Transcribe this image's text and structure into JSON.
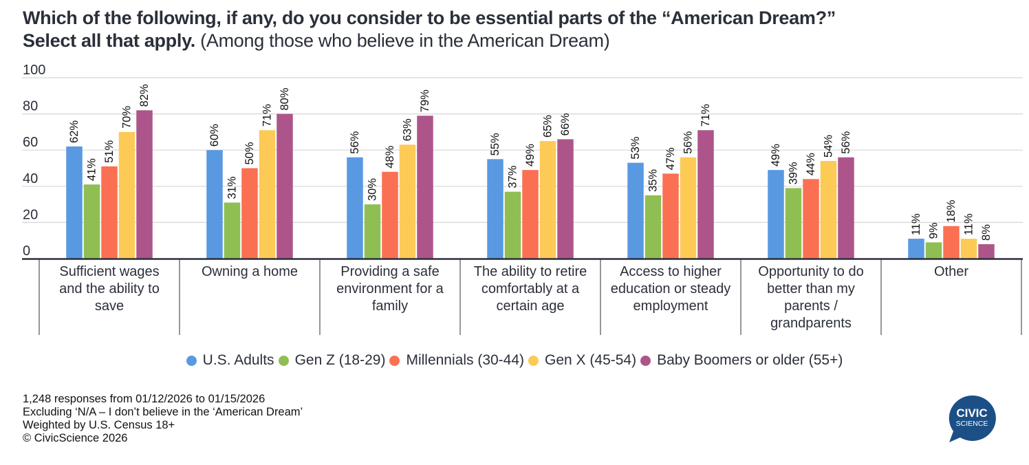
{
  "title": {
    "main": "Which of the following, if any, do you consider to be essential parts of the “American Dream?”",
    "line2_bold": "Select all that apply.",
    "line2_regular": " (Among those who believe in the American Dream)"
  },
  "chart_data": {
    "type": "bar",
    "title": "Which of the following, if any, do you consider to be essential parts of the “American Dream?” Select all that apply. (Among those who believe in the American Dream)",
    "xlabel": "",
    "ylabel": "",
    "ylim": [
      0,
      100
    ],
    "yticks": [
      0,
      20,
      40,
      60,
      80,
      100
    ],
    "grid": true,
    "legend_position": "bottom",
    "value_suffix": "%",
    "categories": [
      [
        "Sufficient wages",
        "and the ability to",
        "save"
      ],
      [
        "Owning a home"
      ],
      [
        "Providing a safe",
        "environment for a",
        "family"
      ],
      [
        "The ability to retire",
        "comfortably at a",
        "certain age"
      ],
      [
        "Access to higher",
        "education or steady",
        "employment"
      ],
      [
        "Opportunity to do",
        "better than my",
        "parents /",
        "grandparents"
      ],
      [
        "Other"
      ]
    ],
    "series": [
      {
        "name": "U.S. Adults",
        "color": "#5899e2",
        "values": [
          62,
          60,
          56,
          55,
          53,
          49,
          11
        ]
      },
      {
        "name": "Gen Z (18-29)",
        "color": "#8fbf52",
        "values": [
          41,
          31,
          30,
          37,
          35,
          39,
          9
        ]
      },
      {
        "name": "Millennials (30-44)",
        "color": "#fb7052",
        "values": [
          51,
          50,
          48,
          49,
          47,
          44,
          18
        ]
      },
      {
        "name": "Gen X (45-54)",
        "color": "#fdca56",
        "values": [
          70,
          71,
          63,
          65,
          56,
          54,
          11
        ]
      },
      {
        "name": "Baby Boomers or older (55+)",
        "color": "#ad558a",
        "values": [
          82,
          80,
          79,
          66,
          71,
          56,
          8
        ]
      }
    ]
  },
  "footnotes": [
    "1,248 responses from 01/12/2026 to 01/15/2026",
    "Excluding ‘N/A – I don’t believe in the ‘American Dream’",
    "Weighted by U.S. Census 18+",
    "© CivicScience 2026"
  ],
  "logo": {
    "line1": "CIVIC",
    "line2": "SCIENCE",
    "color": "#1c4f85"
  }
}
